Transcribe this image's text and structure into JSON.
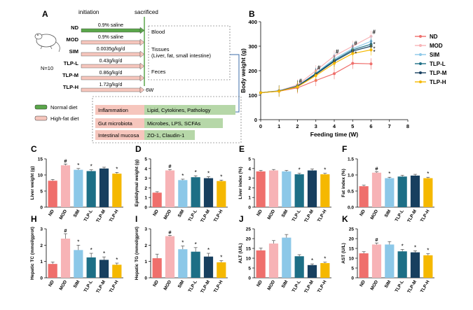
{
  "panel_a": {
    "letter": "A",
    "initiation_label": "initiation",
    "sacrificed_label": "sacrificed",
    "n_label": "N=10",
    "timeline_end": "6W",
    "groups": [
      {
        "name": "ND",
        "treatment": "0.9% saline",
        "diet": "normal"
      },
      {
        "name": "MOD",
        "treatment": "0.9% saline",
        "diet": "high-fat"
      },
      {
        "name": "SIM",
        "treatment": "0.0035g/kg/d",
        "diet": "high-fat"
      },
      {
        "name": "TLP-L",
        "treatment": "0.43g/kg/d",
        "diet": "high-fat"
      },
      {
        "name": "TLP-M",
        "treatment": "0.86g/kg/d",
        "diet": "high-fat"
      },
      {
        "name": "TLP-H",
        "treatment": "1.72g/kg/d",
        "diet": "high-fat"
      }
    ],
    "samples": [
      "Blood",
      "Tissues",
      "(Liver, fat, small intestine)",
      "Feces"
    ],
    "legend": {
      "normal": "Normal diet",
      "highfat": "High-fat diet"
    },
    "measures": [
      {
        "left": "Inflammation",
        "right": "Lipid, Cytokines, Pathology"
      },
      {
        "left": "Gut microbiota",
        "right": "Microbes, LPS, SCFAs"
      },
      {
        "left": "Intestinal mucosa",
        "right": "ZO-1, Claudin-1"
      }
    ]
  },
  "colors": {
    "ND": "#ef6f6c",
    "MOD": "#f7b3b6",
    "SIM": "#8cc8e8",
    "TLP-L": "#1d6f86",
    "TLP-M": "#173f5f",
    "TLP-H": "#f5b800",
    "normal_diet": "#5aa64a",
    "high_fat_diet": "#f6c6bd",
    "measure_green": "#b6d7a8"
  },
  "chart_data": [
    {
      "id": "B",
      "type": "line",
      "title": "",
      "xlabel": "Feeding time (W)",
      "ylabel": "Body weight (g)",
      "x": [
        0,
        1,
        2,
        3,
        4,
        5,
        6
      ],
      "xlim": [
        0,
        8
      ],
      "ylim": [
        0,
        400
      ],
      "xticks": [
        0,
        1,
        2,
        3,
        4,
        5,
        6,
        7,
        8
      ],
      "yticks": [
        0,
        100,
        200,
        300,
        400
      ],
      "series": [
        {
          "name": "ND",
          "values": [
            110,
            116,
            130,
            160,
            188,
            230,
            228
          ]
        },
        {
          "name": "MOD",
          "values": [
            110,
            118,
            142,
            200,
            260,
            300,
            340
          ]
        },
        {
          "name": "SIM",
          "values": [
            110,
            118,
            138,
            190,
            248,
            290,
            320
          ]
        },
        {
          "name": "TLP-L",
          "values": [
            110,
            117,
            137,
            188,
            242,
            285,
            308
          ]
        },
        {
          "name": "TLP-M",
          "values": [
            110,
            117,
            136,
            185,
            238,
            280,
            300
          ]
        },
        {
          "name": "TLP-H",
          "values": [
            110,
            116,
            134,
            180,
            230,
            270,
            285
          ]
        }
      ],
      "marks_hash": [
        {
          "x": 2,
          "y": 150,
          "label": "#"
        },
        {
          "x": 3,
          "y": 205,
          "label": "#"
        },
        {
          "x": 4,
          "y": 270,
          "label": "#"
        },
        {
          "x": 5,
          "y": 305,
          "label": "#"
        },
        {
          "x": 6,
          "y": 350,
          "label": "#"
        }
      ],
      "marks_star": [
        {
          "x": 5,
          "y": 262,
          "label": "*"
        },
        {
          "x": 6,
          "y": 300,
          "label": "*"
        },
        {
          "x": 6,
          "y": 282,
          "label": "*"
        },
        {
          "x": 6,
          "y": 268,
          "label": "*"
        }
      ]
    },
    {
      "id": "C",
      "type": "bar",
      "ylabel": "Liver weight (g)",
      "ylim": [
        0,
        15
      ],
      "yticks": [
        0,
        5,
        10,
        15
      ],
      "categories": [
        "ND",
        "MOD",
        "SIM",
        "TLP-L",
        "TLP-M",
        "TLP-H"
      ],
      "values": [
        8.2,
        13.0,
        11.6,
        11.2,
        12.0,
        10.4
      ],
      "errors": [
        0.4,
        0.4,
        0.4,
        0.4,
        0.4,
        0.4
      ],
      "marks": [
        "",
        "#",
        "*",
        "*",
        "",
        "*"
      ]
    },
    {
      "id": "D",
      "type": "bar",
      "ylabel": "Epididymal weight (g)",
      "ylim": [
        0,
        5
      ],
      "yticks": [
        0,
        1,
        2,
        3,
        4,
        5
      ],
      "categories": [
        "ND",
        "MOD",
        "SIM",
        "TLP-L",
        "TLP-M",
        "TLP-H"
      ],
      "values": [
        1.5,
        3.8,
        2.8,
        3.1,
        3.0,
        2.7
      ],
      "errors": [
        0.1,
        0.1,
        0.1,
        0.15,
        0.15,
        0.1
      ],
      "marks": [
        "",
        "#",
        "*",
        "*",
        "*",
        "*"
      ]
    },
    {
      "id": "E",
      "type": "bar",
      "ylabel": "Liver index (%)",
      "ylim": [
        0,
        5
      ],
      "yticks": [
        0,
        1,
        2,
        3,
        4,
        5
      ],
      "categories": [
        "ND",
        "MOD",
        "SIM",
        "TLP-L",
        "TLP-M",
        "TLP-H"
      ],
      "values": [
        3.7,
        3.8,
        3.7,
        3.4,
        3.8,
        3.4
      ],
      "errors": [
        0.1,
        0.1,
        0.1,
        0.1,
        0.15,
        0.1
      ],
      "marks": [
        "",
        "",
        "",
        "*",
        "",
        "*"
      ]
    },
    {
      "id": "F",
      "type": "bar",
      "ylabel": "Fat index (%)",
      "ylim": [
        0,
        1.5
      ],
      "yticks": [
        0.0,
        0.5,
        1.0,
        1.5
      ],
      "categories": [
        "ND",
        "MOD",
        "SIM",
        "TLP-L",
        "TLP-M",
        "TLP-H"
      ],
      "values": [
        0.65,
        1.07,
        0.9,
        0.95,
        0.98,
        0.9
      ],
      "errors": [
        0.03,
        0.03,
        0.03,
        0.04,
        0.04,
        0.03
      ],
      "marks": [
        "",
        "#",
        "*",
        "",
        "",
        "*"
      ]
    },
    {
      "id": "H",
      "type": "bar",
      "ylabel": "Hepatic TC (mmol/gprot)",
      "ylim": [
        0,
        3
      ],
      "yticks": [
        0,
        1,
        2,
        3
      ],
      "categories": [
        "ND",
        "MOD",
        "SIM",
        "TLP-L",
        "TLP-M",
        "TLP-H"
      ],
      "values": [
        0.85,
        2.4,
        1.7,
        1.25,
        1.1,
        0.8
      ],
      "errors": [
        0.12,
        0.3,
        0.3,
        0.25,
        0.18,
        0.1
      ],
      "marks": [
        "",
        "#",
        "*",
        "*",
        "*",
        "*"
      ]
    },
    {
      "id": "I",
      "type": "bar",
      "ylabel": "Hepatic TG (mmol/gprot)",
      "ylim": [
        0,
        3
      ],
      "yticks": [
        0,
        1,
        2,
        3
      ],
      "categories": [
        "ND",
        "MOD",
        "SIM",
        "TLP-L",
        "TLP-M",
        "TLP-H"
      ],
      "values": [
        1.2,
        2.55,
        1.75,
        1.6,
        1.3,
        0.95
      ],
      "errors": [
        0.25,
        0.05,
        0.2,
        0.25,
        0.2,
        0.1
      ],
      "marks": [
        "",
        "#",
        "*",
        "*",
        "*",
        "*"
      ]
    },
    {
      "id": "J",
      "type": "bar",
      "ylabel": "ALT (U/L)",
      "ylim": [
        0,
        25
      ],
      "yticks": [
        0,
        5,
        10,
        15,
        20,
        25
      ],
      "categories": [
        "ND",
        "MOD",
        "SIM",
        "TLP-L",
        "TLP-M",
        "TLP-H"
      ],
      "values": [
        14,
        17.5,
        20.5,
        11,
        6.5,
        7.5
      ],
      "errors": [
        1.2,
        1.5,
        1.6,
        0.8,
        0.6,
        0.5
      ],
      "marks": [
        "",
        "",
        "",
        "",
        "*",
        "*"
      ]
    },
    {
      "id": "K",
      "type": "bar",
      "ylabel": "AST (U/L)",
      "ylim": [
        0,
        25
      ],
      "yticks": [
        0,
        5,
        10,
        15,
        20,
        25
      ],
      "categories": [
        "ND",
        "MOD",
        "SIM",
        "TLP-L",
        "TLP-M",
        "TLP-H"
      ],
      "values": [
        12.5,
        17,
        17,
        13.5,
        13,
        11.5
      ],
      "errors": [
        0.8,
        0.8,
        1.5,
        1.0,
        0.8,
        0.8
      ],
      "marks": [
        "",
        "#",
        "",
        "*",
        "*",
        "*"
      ]
    }
  ]
}
